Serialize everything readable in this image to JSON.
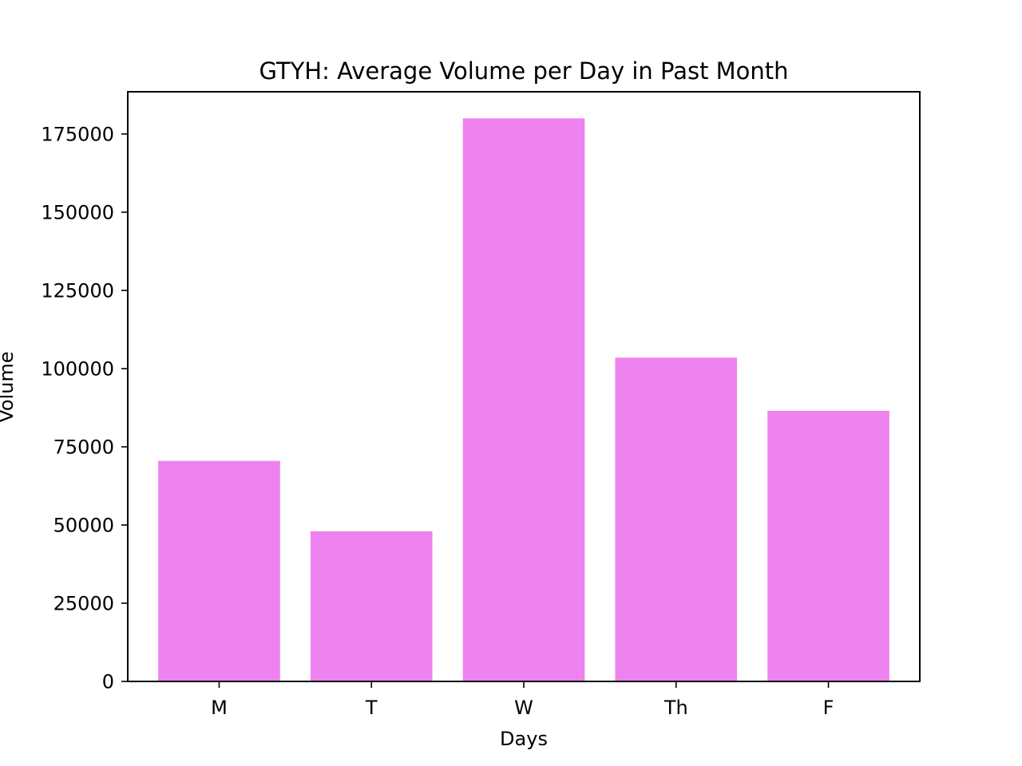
{
  "chart_data": {
    "type": "bar",
    "title": "GTYH: Average Volume per Day in Past Month",
    "xlabel": "Days",
    "ylabel": "Volume",
    "categories": [
      "M",
      "T",
      "W",
      "Th",
      "F"
    ],
    "values": [
      70500,
      48000,
      180000,
      103500,
      86500
    ],
    "ylim": [
      0,
      188500
    ],
    "yticks": [
      0,
      25000,
      50000,
      75000,
      100000,
      125000,
      150000,
      175000
    ],
    "bar_color": "#ee82ee",
    "grid": false,
    "legend": "none"
  }
}
